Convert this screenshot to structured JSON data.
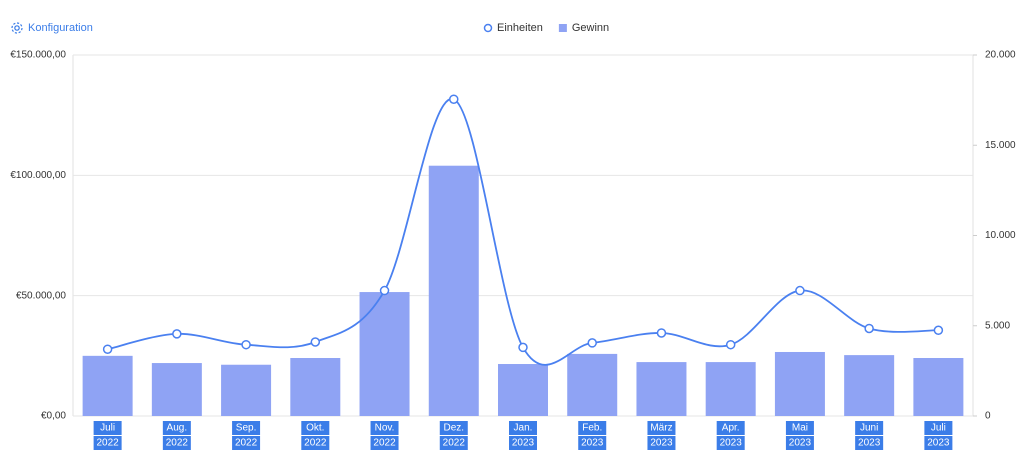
{
  "toolbar": {
    "config": "Konfiguration"
  },
  "chart_data": {
    "type": "combo",
    "categories": [
      [
        "Juli",
        "2022"
      ],
      [
        "Aug.",
        "2022"
      ],
      [
        "Sep.",
        "2022"
      ],
      [
        "Okt.",
        "2022"
      ],
      [
        "Nov.",
        "2022"
      ],
      [
        "Dez.",
        "2022"
      ],
      [
        "Jan.",
        "2023"
      ],
      [
        "Feb.",
        "2023"
      ],
      [
        "März",
        "2023"
      ],
      [
        "Apr.",
        "2023"
      ],
      [
        "Mai",
        "2023"
      ],
      [
        "Juni",
        "2023"
      ],
      [
        "Juli",
        "2023"
      ]
    ],
    "series": [
      {
        "name": "Einheiten",
        "type": "line",
        "axis": "y2",
        "color": "#4a80f0",
        "values": [
          3700,
          4550,
          3950,
          4100,
          6950,
          17550,
          3800,
          4050,
          4600,
          3950,
          6950,
          4850,
          4750
        ]
      },
      {
        "name": "Gewinn",
        "type": "bar",
        "color": "#8fa3f4",
        "values": [
          25000,
          22000,
          21300,
          24100,
          51500,
          104000,
          21600,
          25800,
          22400,
          22400,
          26600,
          25300,
          24100
        ]
      }
    ],
    "ylim": [
      0,
      150000
    ],
    "yticks": [
      {
        "value": 0,
        "label": "€0,00"
      },
      {
        "value": 50000,
        "label": "€50.000,00"
      },
      {
        "value": 100000,
        "label": "€100.000,00"
      },
      {
        "value": 150000,
        "label": "€150.000,00"
      }
    ],
    "y2lim": [
      0,
      20000
    ],
    "y2ticks": [
      0,
      {
        "value": 5000,
        "label": "5.000"
      },
      {
        "value": 10000,
        "label": "10.000"
      },
      {
        "value": 15000,
        "label": "15.000"
      },
      {
        "value": 20000,
        "label": "20.000"
      }
    ],
    "grid": true,
    "legend": "top"
  }
}
